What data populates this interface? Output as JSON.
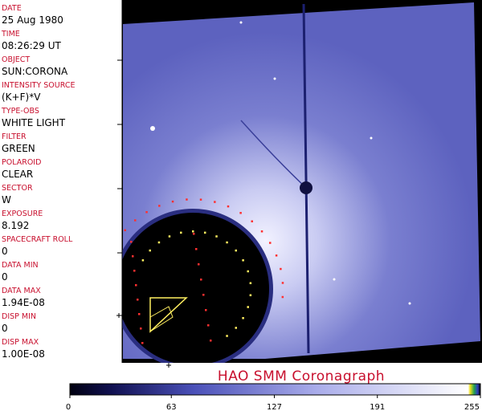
{
  "fields": [
    {
      "label": "DATE",
      "value": "25 Aug 1980"
    },
    {
      "label": "TIME",
      "value": "08:26:29 UT"
    },
    {
      "label": "OBJECT",
      "value": "SUN:CORONA"
    },
    {
      "label": "INTENSITY SOURCE",
      "value": "(K+F)*V"
    },
    {
      "label": "TYPE-OBS",
      "value": "WHITE LIGHT"
    },
    {
      "label": "FILTER",
      "value": "GREEN"
    },
    {
      "label": "POLAROID",
      "value": "CLEAR"
    },
    {
      "label": "SECTOR",
      "value": "W"
    },
    {
      "label": "EXPOSURE",
      "value": "8.192"
    },
    {
      "label": "SPACECRAFT ROLL",
      "value": "0"
    },
    {
      "label": "DATA MIN",
      "value": "0"
    },
    {
      "label": "DATA MAX",
      "value": "1.94E-08"
    },
    {
      "label": "DISP MIN",
      "value": "0"
    },
    {
      "label": "DISP MAX",
      "value": "1.00E-08"
    }
  ],
  "title": "HAO   SMM  Coronagraph",
  "colorbar": {
    "range": [
      0,
      255
    ],
    "ticks": [
      0,
      63,
      127,
      191,
      255
    ]
  }
}
